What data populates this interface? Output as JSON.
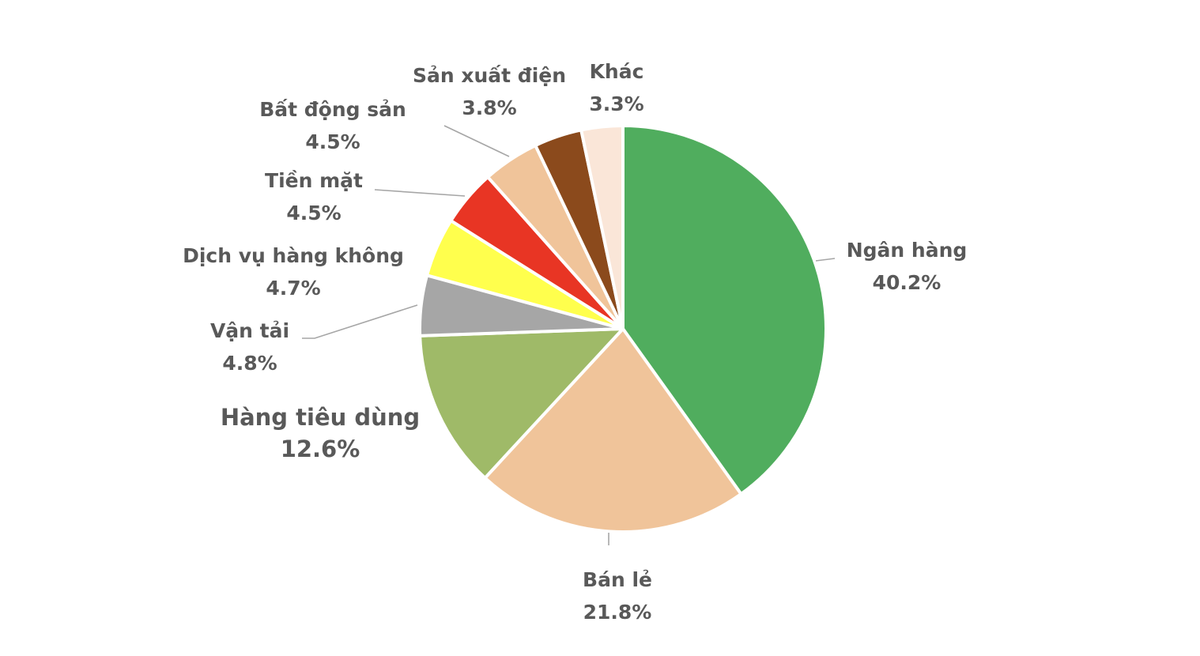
{
  "chart_data": {
    "type": "pie",
    "start_angle_deg": 0,
    "direction": "clockwise",
    "slices": [
      {
        "label": "Ngân hàng",
        "value": 40.2,
        "value_label": "40.2%",
        "color": "#50ad5e"
      },
      {
        "label": "Bán lẻ",
        "value": 21.8,
        "value_label": "21.8%",
        "color": "#f0c49a"
      },
      {
        "label": "Hàng tiêu dùng",
        "value": 12.6,
        "value_label": "12.6%",
        "color": "#9fba68"
      },
      {
        "label": "Vận tải",
        "value": 4.8,
        "value_label": "4.8%",
        "color": "#a6a6a6"
      },
      {
        "label": "Dịch vụ hàng không",
        "value": 4.7,
        "value_label": "4.7%",
        "color": "#ffff4d"
      },
      {
        "label": "Tiền mặt",
        "value": 4.5,
        "value_label": "4.5%",
        "color": "#e83524"
      },
      {
        "label": "Bất động sản",
        "value": 4.5,
        "value_label": "4.5%",
        "color": "#f0c49a"
      },
      {
        "label": "Sản xuất điện",
        "value": 3.8,
        "value_label": "3.8%",
        "color": "#8b4a1c"
      },
      {
        "label": "Khác",
        "value": 3.3,
        "value_label": "3.3%",
        "color": "#fae6d8"
      }
    ]
  }
}
